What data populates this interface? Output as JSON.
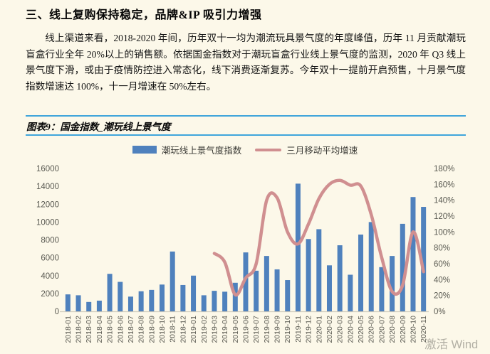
{
  "page": {
    "heading": "三、线上复购保持稳定，品牌&IP 吸引力增强",
    "paragraph": "线上渠道来看，2018-2020 年间，历年双十一均为潮流玩具景气度的年度峰值，历年 11 月贡献潮玩盲盒行业全年 20%以上的销售额。依据国金指数对于潮玩盲盒行业线上景气度的监测，2020 年 Q3 线上景气度下滑，或由于疫情防控进入常态化，线下消费逐渐复苏。今年双十一提前开启预售，十月景气度指数增速达 100%，十一月增速在 50%左右。",
    "figure_caption": "图表9：国金指数_潮玩线上景气度",
    "watermark": "激活 Wind",
    "colors": {
      "background": "#fcf8e9",
      "caption_rule": "#3fa5db",
      "bar": "#4f81bd",
      "line": "#d08f90",
      "axis_text": "#5a5a52",
      "axis_line": "#cfcabb"
    }
  },
  "chart_data": {
    "type": "bar",
    "subtype": "bar+line dual axis",
    "title": "图表9：国金指数_潮玩线上景气度",
    "legend_position": "top",
    "grid": false,
    "legend": [
      "潮玩线上景气度指数",
      "三月移动平均增速"
    ],
    "categories": [
      "2018-01",
      "2018-02",
      "2018-03",
      "2018-04",
      "2018-05",
      "2018-06",
      "2018-07",
      "2018-08",
      "2018-09",
      "2018-10",
      "2018-11",
      "2018-12",
      "2019-01",
      "2019-02",
      "2019-03",
      "2019-04",
      "2019-05",
      "2019-06",
      "2019-07",
      "2019-08",
      "2019-09",
      "2019-10",
      "2019-11",
      "2019-12",
      "2020-01",
      "2020-02",
      "2020-03",
      "2020-04",
      "2020-05",
      "2020-06",
      "2020-07",
      "2020-08",
      "2020-09",
      "2020-10",
      "2020-11"
    ],
    "series": [
      {
        "name": "潮玩线上景气度指数",
        "type": "bar",
        "axis": "left",
        "values": [
          1900,
          1800,
          1050,
          1200,
          4200,
          3300,
          1650,
          2250,
          2400,
          3000,
          6700,
          2950,
          4000,
          1800,
          2300,
          2200,
          3200,
          6600,
          4550,
          6200,
          4700,
          3500,
          14300,
          8100,
          9200,
          5150,
          7400,
          4100,
          8600,
          10000,
          4950,
          6200,
          9800,
          12800,
          11700
        ]
      },
      {
        "name": "三月移动平均增速",
        "type": "line",
        "axis": "right",
        "unit": "%",
        "values": [
          null,
          null,
          null,
          null,
          null,
          null,
          null,
          null,
          null,
          null,
          null,
          null,
          null,
          null,
          73,
          62,
          21,
          42,
          60,
          140,
          143,
          100,
          85,
          110,
          142,
          160,
          165,
          159,
          158,
          122,
          68,
          25,
          33,
          100,
          50
        ]
      }
    ],
    "left_axis": {
      "min": 0,
      "max": 16000,
      "step": 2000
    },
    "right_axis": {
      "min": 0,
      "max": 180,
      "step": 20,
      "unit": "%"
    }
  }
}
